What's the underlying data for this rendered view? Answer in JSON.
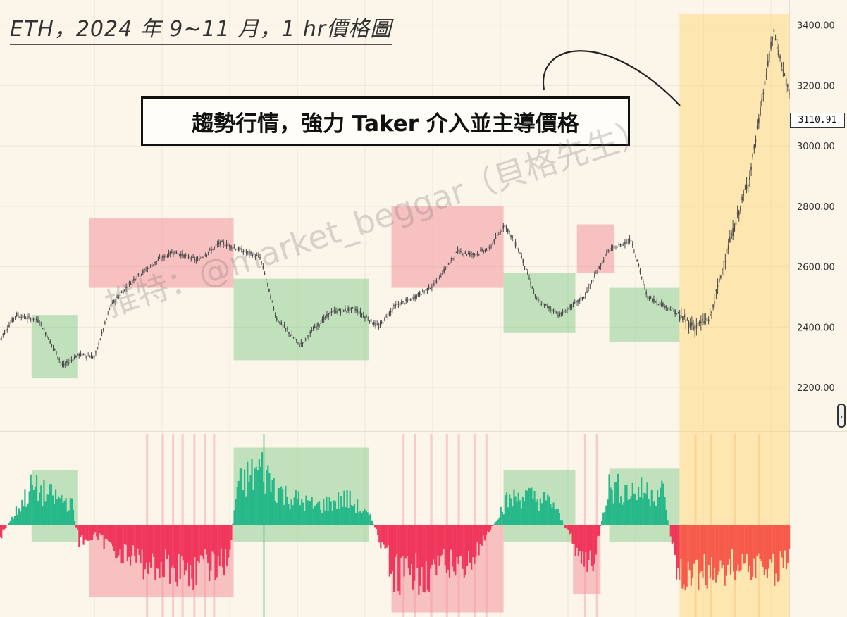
{
  "title": "ETH，2024 年 9~11 月，1 hr價格圖",
  "callout": "趨勢行情，強力 Taker 介入並主導價格",
  "watermark": "推特：@market_beggar（貝格先生）",
  "current_price": "3110.91",
  "scroll_icon": "›",
  "colors": {
    "background": "#fbf6e9",
    "candle": "#4a4a4a",
    "up_zone": "rgba(120,200,130,0.45)",
    "down_zone": "rgba(245,150,160,0.55)",
    "trend_zone": "rgba(255,214,120,0.5)",
    "buy_volume": "#26b888",
    "sell_volume": "#f0365a",
    "trend_sell_volume": "#f55a4a"
  },
  "chart_data": [
    {
      "type": "line",
      "name": "price",
      "ylim": [
        2060,
        3460
      ],
      "yticks": [
        2200,
        2400,
        2600,
        2800,
        3000,
        3200,
        3400
      ],
      "ytick_labels": [
        "2200.00",
        "2400.00",
        "2600.00",
        "2800.00",
        "3000.00",
        "3200.00",
        "3400.00"
      ],
      "x": [
        0,
        2,
        5,
        8,
        10,
        12,
        14,
        17,
        20,
        22,
        25,
        28,
        30,
        33,
        35,
        38,
        40,
        42,
        45,
        48,
        50,
        52,
        55,
        58,
        60,
        62,
        64,
        66,
        68,
        71,
        74,
        77,
        80,
        82,
        85,
        88,
        90,
        92,
        95,
        98,
        100
      ],
      "values": [
        2360,
        2440,
        2420,
        2270,
        2310,
        2300,
        2470,
        2560,
        2620,
        2650,
        2620,
        2680,
        2660,
        2630,
        2430,
        2340,
        2400,
        2450,
        2460,
        2400,
        2470,
        2490,
        2540,
        2650,
        2640,
        2660,
        2740,
        2640,
        2490,
        2440,
        2500,
        2650,
        2690,
        2500,
        2460,
        2400,
        2430,
        2640,
        2900,
        3380,
        3170
      ],
      "zones": [
        {
          "kind": "up",
          "x0": 4.0,
          "x1": 9.8,
          "y0": 2230,
          "y1": 2440
        },
        {
          "kind": "down",
          "x0": 11.3,
          "x1": 29.6,
          "y0": 2530,
          "y1": 2760
        },
        {
          "kind": "up",
          "x0": 29.6,
          "x1": 46.7,
          "y0": 2290,
          "y1": 2560
        },
        {
          "kind": "down",
          "x0": 49.6,
          "x1": 63.8,
          "y0": 2530,
          "y1": 2800
        },
        {
          "kind": "up",
          "x0": 63.8,
          "x1": 72.9,
          "y0": 2380,
          "y1": 2580
        },
        {
          "kind": "down",
          "x0": 73.1,
          "x1": 77.8,
          "y0": 2580,
          "y1": 2740
        },
        {
          "kind": "up",
          "x0": 77.2,
          "x1": 86.1,
          "y0": 2350,
          "y1": 2530
        },
        {
          "kind": "trend",
          "x0": 86.1,
          "x1": 100,
          "y0": 2060,
          "y1": 3460
        }
      ]
    },
    {
      "type": "bar",
      "name": "taker net volume",
      "ylim": [
        -1,
        1
      ],
      "x": [
        0,
        4,
        6,
        9,
        10,
        12,
        18,
        25,
        29,
        30,
        33,
        36,
        40,
        44,
        47,
        50,
        55,
        60,
        64,
        66,
        70,
        73,
        75,
        77,
        80,
        84,
        86,
        90,
        95,
        98,
        100
      ],
      "values": [
        -0.15,
        0.5,
        0.4,
        0.3,
        -0.2,
        -0.15,
        -0.5,
        -0.6,
        -0.45,
        0.5,
        0.75,
        0.4,
        0.25,
        0.35,
        0.1,
        -0.7,
        -0.6,
        -0.45,
        0.3,
        0.4,
        0.3,
        -0.3,
        -0.6,
        0.5,
        0.45,
        0.45,
        -0.7,
        -0.6,
        -0.5,
        -0.6,
        -0.4
      ],
      "zones": [
        {
          "kind": "up",
          "x0": 4.0,
          "x1": 9.8,
          "y0": -0.18,
          "y1": 0.6
        },
        {
          "kind": "down",
          "x0": 11.3,
          "x1": 29.6,
          "y0": -0.78,
          "y1": 0.0
        },
        {
          "kind": "up",
          "x0": 29.6,
          "x1": 46.7,
          "y0": -0.18,
          "y1": 0.85
        },
        {
          "kind": "down",
          "x0": 49.6,
          "x1": 63.8,
          "y0": -0.95,
          "y1": 0.0
        },
        {
          "kind": "up",
          "x0": 63.8,
          "x1": 72.9,
          "y0": -0.18,
          "y1": 0.6
        },
        {
          "kind": "down",
          "x0": 72.6,
          "x1": 76.1,
          "y0": -0.75,
          "y1": 0.0
        },
        {
          "kind": "up",
          "x0": 77.2,
          "x1": 86.1,
          "y0": -0.18,
          "y1": 0.62
        },
        {
          "kind": "trend",
          "x0": 86.1,
          "x1": 100,
          "y0": -1,
          "y1": 1
        }
      ]
    }
  ]
}
